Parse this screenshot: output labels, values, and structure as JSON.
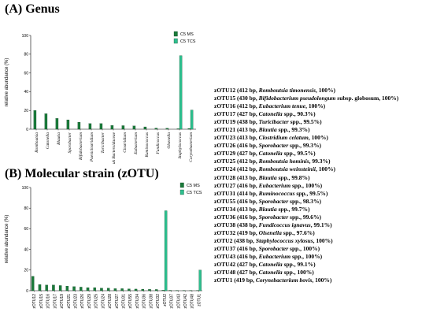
{
  "panel_a": {
    "title": "(A) Genus"
  },
  "panel_b": {
    "title": "(B) Molecular strain (zOTU)"
  },
  "colors": {
    "c5_ms": "#1a7a3a",
    "c5_tcs": "#2ebf8f",
    "stroke": "#0a3a1c"
  },
  "chart_data": [
    {
      "type": "bar",
      "title": "(A) Genus",
      "xlabel": "",
      "ylabel": "relative abundance (%)",
      "ylim": [
        0,
        100
      ],
      "yticks": [
        0,
        20,
        40,
        60,
        80,
        100
      ],
      "grid": false,
      "legend_position": "top-right",
      "categories": [
        "Romboutsia",
        "Catonella",
        "Blautia",
        "Sporobacter",
        "Bifidobacterium",
        "Paeniclostridium",
        "Turicibacter",
        "uk Bacteroidaceae",
        "Clostridium",
        "Eubacterium",
        "Ruminococcus",
        "Fundicoccus",
        "Olsenella",
        "Staphylococcus",
        "Corynebacterium"
      ],
      "series": [
        {
          "name": "C5 MS",
          "values": [
            20,
            16.5,
            11.5,
            10,
            7.5,
            6,
            6,
            4,
            3.8,
            3.5,
            2.5,
            1.2,
            1,
            0.5,
            0.8
          ]
        },
        {
          "name": "C5 TCS",
          "values": [
            0,
            0,
            0,
            0,
            0,
            0,
            0,
            0,
            0,
            0,
            0,
            0,
            0,
            78.5,
            20.5
          ]
        }
      ]
    },
    {
      "type": "bar",
      "title": "(B) Molecular strain (zOTU)",
      "xlabel": "",
      "ylabel": "relative abundance (%)",
      "ylim": [
        0,
        100
      ],
      "yticks": [
        0,
        20,
        40,
        60,
        80,
        100
      ],
      "grid": false,
      "legend_position": "top-right",
      "categories": [
        "zOTU12",
        "zOTU15",
        "zOTU16",
        "zOTU17",
        "zOTU19",
        "zOTU21",
        "zOTU23",
        "zOTU26",
        "zOTU29",
        "zOTU25",
        "zOTU24",
        "zOTU28",
        "zOTU27",
        "zOTU31",
        "zOTU55",
        "zOTU34",
        "zOTU36",
        "zOTU38",
        "zOTU32",
        "zOTU2",
        "zOTU37",
        "zOTU43",
        "zOTU42",
        "zOTU48",
        "zOTU1"
      ],
      "series": [
        {
          "name": "C5 MS",
          "values": [
            14,
            6,
            5.5,
            5.5,
            5,
            4.5,
            4,
            3.5,
            3,
            3,
            2.5,
            2.5,
            2,
            2,
            1.8,
            1.6,
            1.5,
            1.3,
            1.2,
            0.5,
            0.4,
            0.3,
            0.3,
            0.3,
            0.3
          ]
        },
        {
          "name": "C5 TCS",
          "values": [
            0,
            0,
            0,
            0,
            0,
            0,
            0,
            0,
            0,
            0,
            0,
            0,
            0,
            0,
            0,
            0,
            0,
            0,
            0,
            77.5,
            0,
            0,
            0,
            0,
            20
          ]
        }
      ]
    }
  ],
  "strain_list": [
    {
      "label": "zOTU12 (412 bp, ",
      "species": "Romboutsia timonensis",
      "ident": ", 100%)"
    },
    {
      "label": "zOTU15 (430 bp, ",
      "species": "Bifidobacterium pseudolongum",
      "ident": " subsp. globosum, 100%)"
    },
    {
      "label": "zOTU16 (412 bp, ",
      "species": "Eubacterium tenue",
      "ident": ", 100%)"
    },
    {
      "label": "zOTU17 (427 bp, ",
      "species": "Catonella",
      "ident": " spp., 90.3%)"
    },
    {
      "label": "zOTU19 (438 bp, ",
      "species": "Turicibacter",
      "ident": " spp., 99.5%)"
    },
    {
      "label": "zOTU21 (413 bp, ",
      "species": "Blautia",
      "ident": " spp., 99.3%)"
    },
    {
      "label": "zOTU23 (413 bp, ",
      "species": "Clostridium celatum",
      "ident": ", 100%)"
    },
    {
      "label": "zOTU26 (416 bp, ",
      "species": "Sporobacter",
      "ident": " spp., 99.3%)"
    },
    {
      "label": "zOTU29 (427 bp, ",
      "species": "Catonella",
      "ident": " spp., 99.5%)"
    },
    {
      "label": "zOTU25 (412 bp, ",
      "species": "Romboutsia hominis",
      "ident": ", 99.3%)"
    },
    {
      "label": "zOTU24 (412 bp, ",
      "species": "Romboutsia weinsteinii",
      "ident": ", 100%)"
    },
    {
      "label": "zOTU28 (413 bp, ",
      "species": "Blautia",
      "ident": " spp., 99.8%)"
    },
    {
      "label": "zOTU27 (416 bp, ",
      "species": "Eubacterium",
      "ident": " spp., 100%)"
    },
    {
      "label": "zOTU31 (414 bp, ",
      "species": "Ruminococcus",
      "ident": " spp., 99.5%)"
    },
    {
      "label": "zOTU55 (416 bp, ",
      "species": "Sporobacter",
      "ident": " spp., 98.3%)"
    },
    {
      "label": "zOTU34 (413 bp, ",
      "species": "Blautia",
      "ident": " spp., 99.7%)"
    },
    {
      "label": "zOTU36 (416 bp, ",
      "species": "Sporobacter",
      "ident": " spp., 99.6%)"
    },
    {
      "label": "zOTU38 (438 bp, ",
      "species": "Fundicoccus ignavus",
      "ident": ", 99.1%)"
    },
    {
      "label": "zOTU32 (419 bp, ",
      "species": "Olsenella",
      "ident": " spp., 97.6%)"
    },
    {
      "label": "zOTU2 (438 bp, ",
      "species": "Staphylococcus xylosus",
      "ident": ", 100%)"
    },
    {
      "label": "zOTU37 (416 bp, ",
      "species": "Sporobacter",
      "ident": " spp., 100%)"
    },
    {
      "label": "zOTU43 (416 bp, ",
      "species": "Eubacterium",
      "ident": " spp., 100%)"
    },
    {
      "label": "zOTU42 (427 bp, ",
      "species": "Catonella",
      "ident": " spp., 99.1%)"
    },
    {
      "label": "zOTU48 (427 bp, ",
      "species": "Catonella",
      "ident": " spp., 100%)"
    },
    {
      "label": "zOTU1 (419 bp, ",
      "species": "Corynebacterium bovis",
      "ident": ", 100%)"
    }
  ]
}
